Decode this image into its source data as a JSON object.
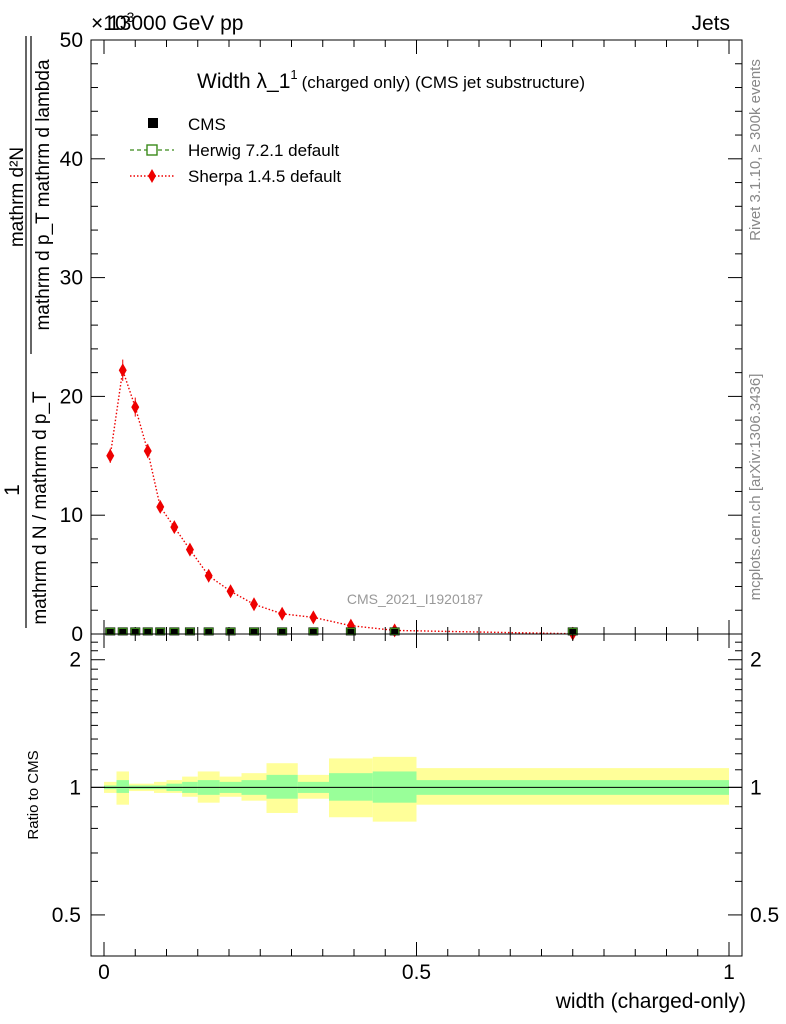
{
  "header": {
    "left": "13000 GeV pp",
    "right": "Jets",
    "exponent_label": "×10",
    "exponent_power": "3"
  },
  "plot": {
    "title_main": "Width λ_1",
    "title_sup": "1",
    "title_sub": "(charged only) (CMS jet substructure)",
    "analysis_id": "CMS_2021_I1920187",
    "ylabel": "1/(mathrm d N / mathrm d p_T) · mathrm d²N/(mathrm d p_T mathrm d lambda)",
    "ylabel_numerator": "1",
    "ylabel_denominator": "mathrm d N / mathrm d p_T",
    "ylabel_frac_num": "mathrm d²N",
    "ylabel_frac_den": "mathrm d p_T mathrm d lambda",
    "right_text_top": "Rivet 3.1.10, ≥ 300k events",
    "right_text_bottom": "mcplots.cern.ch [arXiv:1306.3436]"
  },
  "legend": {
    "cms": "CMS",
    "herwig": "Herwig 7.2.1 default",
    "sherpa": "Sherpa 1.4.5 default"
  },
  "colors": {
    "herwig": "#3a8a1a",
    "sherpa": "#ee0000",
    "band_outer": "#ffff99",
    "band_inner": "#99ff99"
  },
  "chart_data": [
    {
      "type": "scatter",
      "title": "Width λ_1^1 (charged only) (CMS jet substructure)",
      "xlabel": "width (charged-only)",
      "ylabel": "1/(dN/dpT) d²N/(dpT dλ)",
      "xlim": [
        0,
        1
      ],
      "ylim": [
        0,
        50
      ],
      "y_scale_factor": 1000,
      "yticks": [
        "0",
        "10",
        "20",
        "30",
        "40",
        "50"
      ],
      "bin_edges": [
        0,
        0.02,
        0.04,
        0.06,
        0.08,
        0.1,
        0.125,
        0.15,
        0.185,
        0.22,
        0.26,
        0.31,
        0.36,
        0.43,
        0.5,
        1.0
      ],
      "series": [
        {
          "name": "CMS",
          "x": [
            0.01,
            0.03,
            0.05,
            0.07,
            0.09,
            0.1125,
            0.1375,
            0.1675,
            0.2025,
            0.24,
            0.285,
            0.335,
            0.395,
            0.465,
            0.75
          ],
          "values": [
            0.05,
            0.05,
            0.05,
            0.05,
            0.05,
            0.05,
            0.05,
            0.05,
            0.05,
            0.05,
            0.05,
            0.05,
            0.05,
            0.05,
            0.05
          ]
        },
        {
          "name": "Herwig 7.2.1 default",
          "x": [
            0.01,
            0.03,
            0.05,
            0.07,
            0.09,
            0.1125,
            0.1375,
            0.1675,
            0.2025,
            0.24,
            0.285,
            0.335,
            0.395,
            0.465,
            0.75
          ],
          "values": [
            0.05,
            0.05,
            0.05,
            0.05,
            0.05,
            0.05,
            0.05,
            0.05,
            0.05,
            0.05,
            0.05,
            0.05,
            0.05,
            0.05,
            0.05
          ]
        },
        {
          "name": "Sherpa 1.4.5 default",
          "x": [
            0.01,
            0.03,
            0.05,
            0.07,
            0.09,
            0.1125,
            0.1375,
            0.1675,
            0.2025,
            0.24,
            0.285,
            0.335,
            0.395,
            0.465,
            0.75
          ],
          "values": [
            15.0,
            22.2,
            19.1,
            15.4,
            10.7,
            9.0,
            7.1,
            4.9,
            3.6,
            2.5,
            1.7,
            1.4,
            0.7,
            0.3,
            0.02
          ],
          "errors": [
            0.6,
            0.9,
            0.8,
            0.6,
            0.4,
            0.4,
            0.3,
            0.2,
            0.2,
            0.15,
            0.1,
            0.1,
            0.05,
            0.03,
            0.01
          ]
        }
      ]
    },
    {
      "type": "area",
      "title": "Ratio to CMS",
      "xlabel": "width (charged-only)",
      "ylabel": "Ratio to CMS",
      "xlim": [
        0,
        1
      ],
      "ylim": [
        0.4,
        2.3
      ],
      "y_scale": "log",
      "yticks": [
        "0.5",
        "1",
        "2"
      ],
      "xticks": [
        "0",
        "0.5",
        "1"
      ],
      "bin_edges": [
        0,
        0.02,
        0.04,
        0.06,
        0.08,
        0.1,
        0.125,
        0.15,
        0.185,
        0.22,
        0.26,
        0.31,
        0.36,
        0.43,
        0.5,
        1.0
      ],
      "series": [
        {
          "name": "total uncertainty low",
          "values": [
            0.97,
            0.91,
            0.98,
            0.98,
            0.97,
            0.97,
            0.95,
            0.92,
            0.95,
            0.93,
            0.87,
            0.94,
            0.85,
            0.83,
            0.91
          ]
        },
        {
          "name": "total uncertainty high",
          "values": [
            1.03,
            1.09,
            1.02,
            1.02,
            1.03,
            1.04,
            1.06,
            1.09,
            1.06,
            1.08,
            1.14,
            1.07,
            1.17,
            1.18,
            1.11
          ]
        },
        {
          "name": "stat uncertainty low",
          "values": [
            0.99,
            0.97,
            0.99,
            0.99,
            0.99,
            0.98,
            0.97,
            0.96,
            0.97,
            0.96,
            0.94,
            0.97,
            0.93,
            0.92,
            0.96
          ]
        },
        {
          "name": "stat uncertainty high",
          "values": [
            1.01,
            1.04,
            1.01,
            1.01,
            1.01,
            1.02,
            1.03,
            1.04,
            1.03,
            1.04,
            1.07,
            1.03,
            1.08,
            1.09,
            1.04
          ]
        },
        {
          "name": "reference",
          "values": [
            1,
            1,
            1,
            1,
            1,
            1,
            1,
            1,
            1,
            1,
            1,
            1,
            1,
            1,
            1
          ]
        }
      ]
    }
  ]
}
